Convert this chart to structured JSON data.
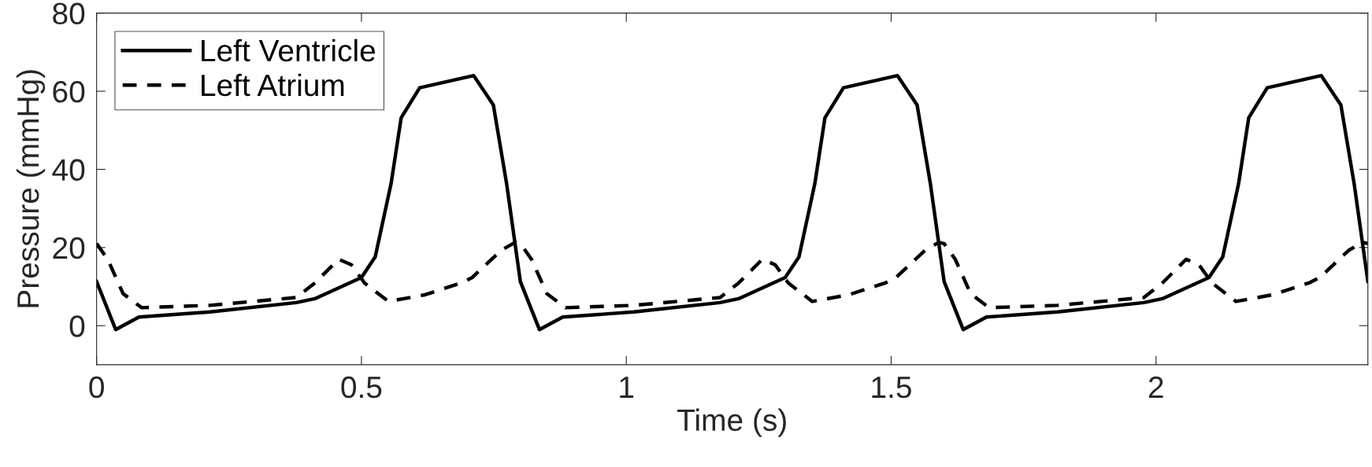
{
  "chart_data": {
    "type": "line",
    "xlabel": "Time (s)",
    "ylabel": "Pressure (mmHg)",
    "xlim": [
      0,
      2.4
    ],
    "xticks": [
      0,
      0.5,
      1,
      1.5,
      2
    ],
    "ylim": [
      -10,
      80
    ],
    "yticks": [
      0,
      20,
      40,
      60,
      80
    ],
    "grid": false,
    "legend": "top left",
    "series": [
      {
        "name": "Left Ventricle",
        "color": "#000000",
        "line_style": "solid",
        "x": [
          0,
          0.036,
          0.08,
          0.214,
          0.377,
          0.412,
          0.5,
          0.526,
          0.556,
          0.575,
          0.61,
          0.712,
          0.749,
          0.774,
          0.8,
          0.836,
          0.88,
          1.014,
          1.177,
          1.212,
          1.3,
          1.326,
          1.356,
          1.375,
          1.41,
          1.512,
          1.549,
          1.574,
          1.6,
          1.636,
          1.68,
          1.814,
          1.977,
          2.012,
          2.1,
          2.126,
          2.156,
          2.175,
          2.21,
          2.312,
          2.349,
          2.374,
          2.4
        ],
        "values": [
          11.3,
          -1,
          2.2,
          3.5,
          5.9,
          6.9,
          12.3,
          17.6,
          36.4,
          53.2,
          60.9,
          64,
          56.5,
          36.4,
          11.3,
          -1,
          2.2,
          3.5,
          5.9,
          6.9,
          12.3,
          17.6,
          36.4,
          53.2,
          60.9,
          64,
          56.5,
          36.4,
          11.3,
          -1,
          2.2,
          3.5,
          5.9,
          6.9,
          12.3,
          17.6,
          36.4,
          53.2,
          60.9,
          64,
          56.5,
          36.4,
          11.3
        ]
      },
      {
        "name": "Left Atrium",
        "color": "#000000",
        "line_style": "dashed",
        "x": [
          0,
          0.021,
          0.05,
          0.085,
          0.214,
          0.377,
          0.412,
          0.457,
          0.481,
          0.506,
          0.551,
          0.62,
          0.69,
          0.709,
          0.764,
          0.79,
          0.8,
          0.821,
          0.85,
          0.885,
          1.014,
          1.177,
          1.212,
          1.257,
          1.281,
          1.306,
          1.351,
          1.42,
          1.49,
          1.509,
          1.564,
          1.59,
          1.6,
          1.621,
          1.65,
          1.685,
          1.814,
          1.977,
          2.012,
          2.057,
          2.081,
          2.106,
          2.151,
          2.22,
          2.29,
          2.309,
          2.364,
          2.39,
          2.4
        ],
        "values": [
          21,
          17,
          8.2,
          4.6,
          5.2,
          7.2,
          10.9,
          17,
          15.6,
          10.9,
          6.2,
          7.9,
          11,
          12.3,
          19.3,
          21.3,
          21,
          17,
          8.2,
          4.6,
          5.2,
          7.2,
          10.9,
          17,
          15.6,
          10.9,
          6.2,
          7.9,
          11,
          12.3,
          19.3,
          21.3,
          21,
          17,
          8.2,
          4.6,
          5.2,
          7.2,
          10.9,
          17,
          15.6,
          10.9,
          6.2,
          7.9,
          11,
          12.3,
          19.3,
          21.3,
          21
        ]
      }
    ]
  }
}
